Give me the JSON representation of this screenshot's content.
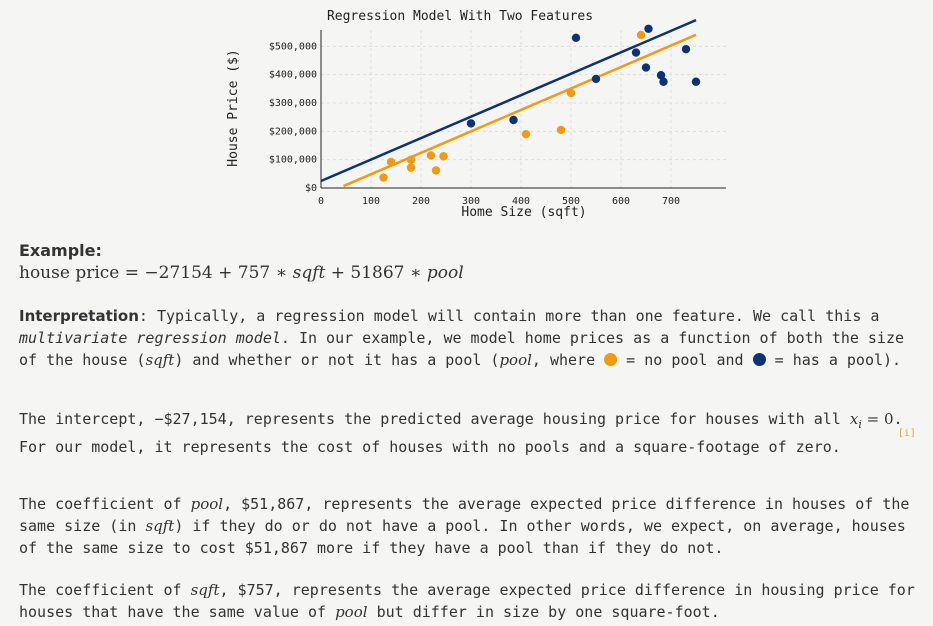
{
  "chart_data": {
    "type": "scatter",
    "title": "Regression Model With Two Features",
    "xlabel": "Home Size (sqft)",
    "ylabel": "House Price ($)",
    "xlim": [
      0,
      800
    ],
    "ylim": [
      0,
      600000
    ],
    "xticks": [
      "0",
      "100",
      "200",
      "300",
      "400",
      "500",
      "600",
      "700"
    ],
    "yticks": [
      "$0",
      "$100,000",
      "$200,000",
      "$300,000",
      "$400,000",
      "$500,000"
    ],
    "grid": true,
    "colors": {
      "no_pool": "#f29a12",
      "pool": "#0d3278"
    },
    "series": [
      {
        "key": "no_pool",
        "points": [
          [
            125,
            37000
          ],
          [
            140,
            92000
          ],
          [
            180,
            72000
          ],
          [
            180,
            100000
          ],
          [
            220,
            115000
          ],
          [
            230,
            62000
          ],
          [
            245,
            112000
          ],
          [
            410,
            190000
          ],
          [
            480,
            205000
          ],
          [
            500,
            335000
          ],
          [
            640,
            540000
          ]
        ]
      },
      {
        "key": "pool",
        "points": [
          [
            300,
            228000
          ],
          [
            385,
            240000
          ],
          [
            510,
            530000
          ],
          [
            550,
            385000
          ],
          [
            630,
            478000
          ],
          [
            650,
            425000
          ],
          [
            655,
            562000
          ],
          [
            680,
            398000
          ],
          [
            685,
            375000
          ],
          [
            730,
            490000
          ],
          [
            750,
            375000
          ]
        ]
      }
    ],
    "lines": [
      {
        "key": "no_pool",
        "intercept": -27154,
        "slope": 757
      },
      {
        "key": "pool",
        "intercept": 24713,
        "slope": 757
      }
    ]
  },
  "example": {
    "label": "Example:",
    "eq_lhs": "house price",
    "eq_eq": " = ",
    "eq_c1": "−27154 + 757 ∗ ",
    "eq_v1": "sqft",
    "eq_c2": " + 51867 ∗ ",
    "eq_v2": "pool"
  },
  "interpretation": {
    "label": "Interpretation",
    "t1": ": Typically, a regression model will contain more than one feature. We call this a ",
    "em": "multivariate regression model",
    "t2": ". In our example, we model home prices as a function of both the size of the house (",
    "v1": "sqft",
    "t3": ") and whether or not it has a pool (",
    "v2": "pool",
    "t4": ", where ",
    "t5": " = no pool and ",
    "t6": " = has a pool)."
  },
  "intercept": {
    "t1": "The intercept, −$27,154, represents the predicted average housing price for houses with all ",
    "math": "x",
    "math_sub": "i",
    "math_rest": " = 0",
    "t2": ". For our model, it represents the cost of houses with no pools and a square-footage of zero.",
    "footnote": "[i]"
  },
  "coef_pool": {
    "t1": "The coefficient of ",
    "v1": "pool",
    "t2": ", $51,867, represents the average expected price difference in houses of the same size (in ",
    "v2": "sqft",
    "t3": ") if they do or do not have a pool. In other words, we expect, on average, houses of the same size to cost $51,867 more if they have a pool than if they do not."
  },
  "coef_sqft": {
    "t1": "The coefficient of ",
    "v1": "sqft",
    "t2": ", $757, represents the average expected price difference in housing price for houses that have the same value of ",
    "v2": "pool",
    "t3": " but differ in size by one square-foot."
  }
}
